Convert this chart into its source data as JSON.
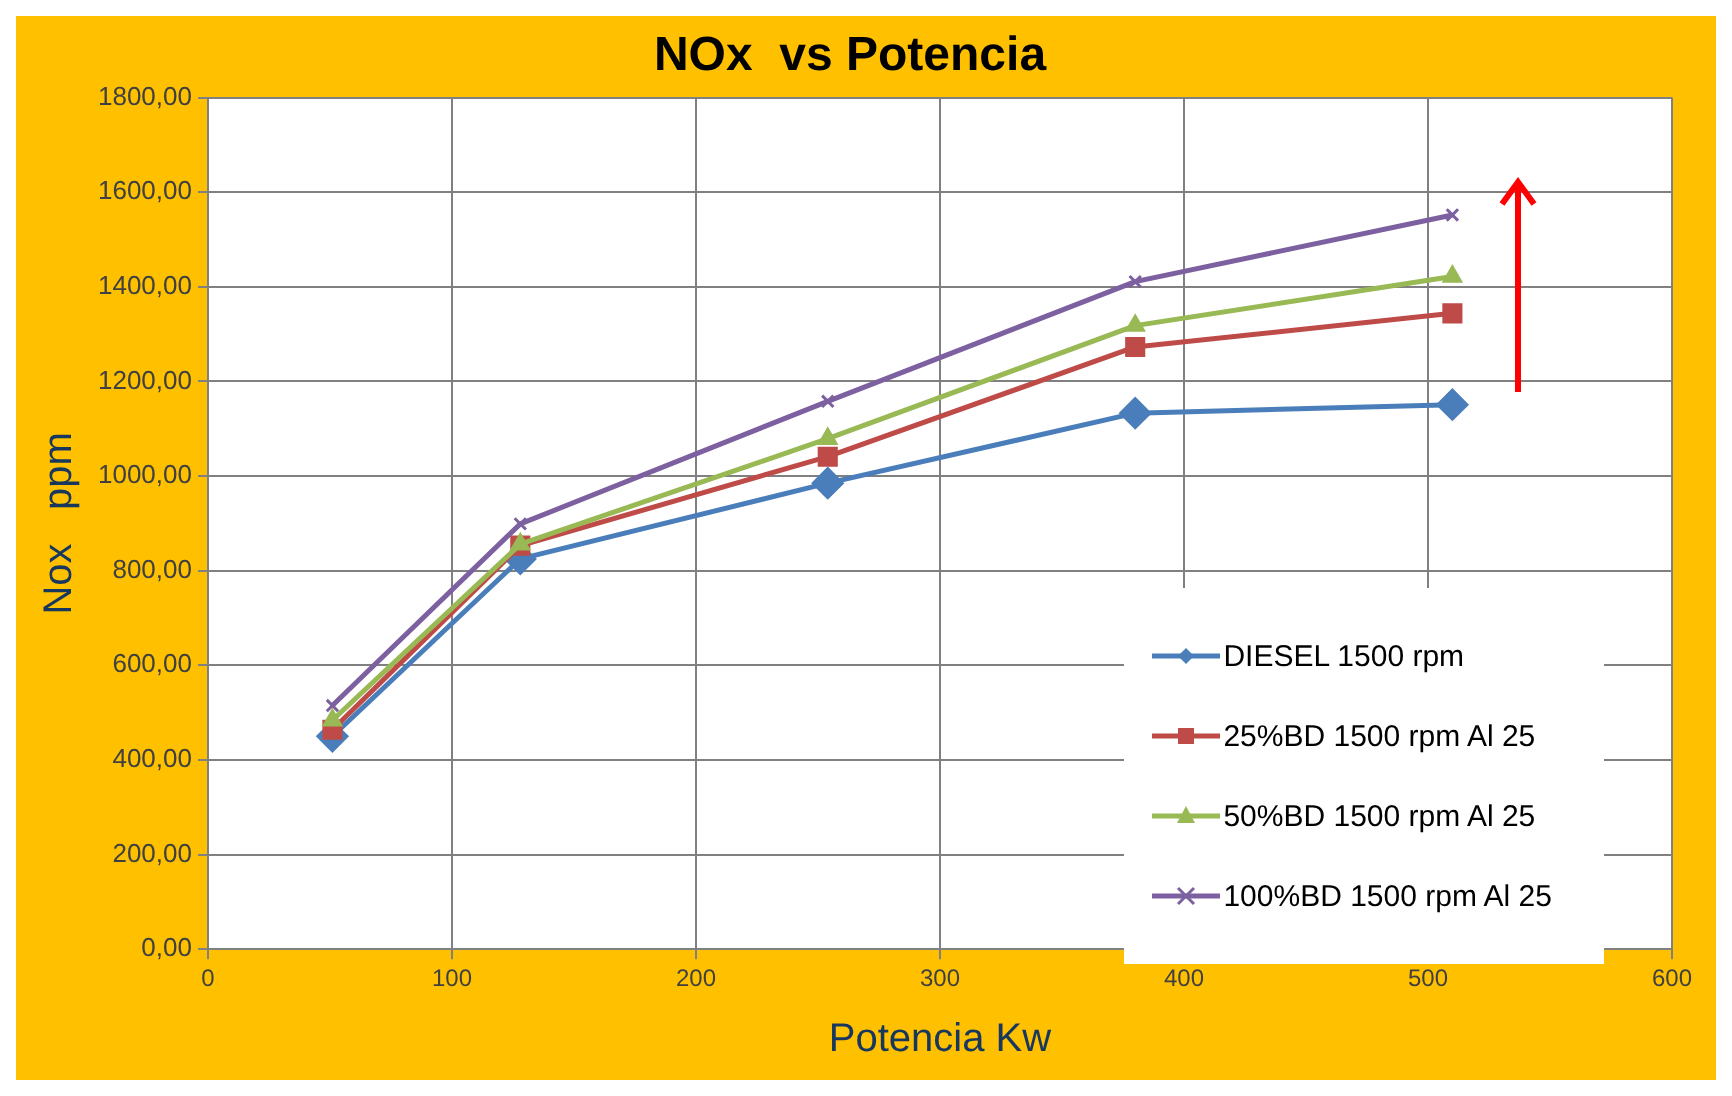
{
  "chart_data": {
    "type": "line",
    "title": "NOx  vs Potencia",
    "xlabel": "Potencia Kw",
    "ylabel": "Nox   ppm",
    "xlim": [
      0,
      600
    ],
    "xticks": [
      0,
      100,
      200,
      300,
      400,
      500,
      600
    ],
    "ylim": [
      0,
      1800
    ],
    "yticks": [
      {
        "value": 0,
        "label": "0,00"
      },
      {
        "value": 200,
        "label": "200,00"
      },
      {
        "value": 400,
        "label": "400,00"
      },
      {
        "value": 600,
        "label": "600,00"
      },
      {
        "value": 800,
        "label": "800,00"
      },
      {
        "value": 1000,
        "label": "1000,00"
      },
      {
        "value": 1200,
        "label": "1200,00"
      },
      {
        "value": 1400,
        "label": "1400,00"
      },
      {
        "value": 1600,
        "label": "1600,00"
      },
      {
        "value": 1800,
        "label": "1800,00"
      }
    ],
    "x": [
      51,
      128,
      254,
      380,
      510
    ],
    "grid": true,
    "legend": "bottom right",
    "line_style": "solid",
    "series": [
      {
        "name": "DIESEL 1500 rpm",
        "color": "#4a7ebb",
        "marker": "diamond",
        "values": [
          450,
          825,
          985,
          1133,
          1151
        ]
      },
      {
        "name": "25%BD  1500 rpm Al 25",
        "color": "#be4b48",
        "marker": "square",
        "values": [
          464,
          853,
          1041,
          1273,
          1344
        ]
      },
      {
        "name": "50%BD 1500 rpm Al 25",
        "color": "#98b954",
        "marker": "triangle",
        "values": [
          484,
          856,
          1079,
          1318,
          1422
        ]
      },
      {
        "name": "100%BD 1500 rpm Al 25",
        "color": "#7d60a0",
        "marker": "cross",
        "values": [
          515,
          899,
          1158,
          1411,
          1552
        ]
      }
    ]
  }
}
